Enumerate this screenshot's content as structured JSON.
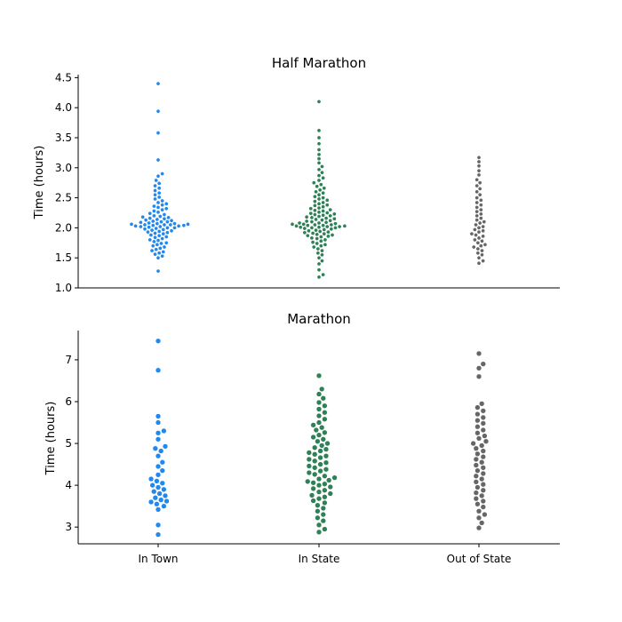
{
  "colors": {
    "In Town": "#2088ee",
    "In State": "#2e8055",
    "Out of State": "#666666"
  },
  "chart_data": [
    {
      "type": "scatter",
      "style": "swarm",
      "title": "Half Marathon",
      "ylabel": "Time (hours)",
      "categories": [
        "In Town",
        "In State",
        "Out of State"
      ],
      "yticks": [
        1.0,
        1.5,
        2.0,
        2.5,
        3.0,
        3.5,
        4.0,
        4.5
      ],
      "ytick_labels": [
        "1.0",
        "1.5",
        "2.0",
        "2.5",
        "3.0",
        "3.5",
        "4.0",
        "4.5"
      ],
      "ylim": [
        1.0,
        4.55
      ],
      "grid": false,
      "series": [
        {
          "category": "In Town",
          "values": [
            1.28,
            1.5,
            1.53,
            1.56,
            1.58,
            1.6,
            1.62,
            1.64,
            1.66,
            1.68,
            1.7,
            1.72,
            1.74,
            1.75,
            1.77,
            1.79,
            1.8,
            1.82,
            1.84,
            1.85,
            1.87,
            1.88,
            1.9,
            1.91,
            1.92,
            1.93,
            1.94,
            1.95,
            1.96,
            1.97,
            1.98,
            1.99,
            2.0,
            2.0,
            2.01,
            2.02,
            2.02,
            2.03,
            2.03,
            2.04,
            2.04,
            2.05,
            2.05,
            2.05,
            2.06,
            2.06,
            2.07,
            2.07,
            2.08,
            2.09,
            2.1,
            2.1,
            2.11,
            2.12,
            2.13,
            2.14,
            2.15,
            2.16,
            2.17,
            2.18,
            2.19,
            2.2,
            2.22,
            2.24,
            2.26,
            2.28,
            2.3,
            2.32,
            2.34,
            2.36,
            2.38,
            2.4,
            2.42,
            2.45,
            2.48,
            2.51,
            2.55,
            2.58,
            2.62,
            2.66,
            2.7,
            2.74,
            2.79,
            2.86,
            2.9,
            3.13,
            3.58,
            3.94,
            4.4
          ]
        },
        {
          "category": "In State",
          "values": [
            1.18,
            1.22,
            1.3,
            1.4,
            1.45,
            1.5,
            1.55,
            1.58,
            1.62,
            1.65,
            1.68,
            1.7,
            1.72,
            1.74,
            1.76,
            1.78,
            1.8,
            1.82,
            1.83,
            1.85,
            1.86,
            1.87,
            1.88,
            1.89,
            1.9,
            1.91,
            1.92,
            1.93,
            1.94,
            1.95,
            1.96,
            1.97,
            1.98,
            1.99,
            2.0,
            2.0,
            2.01,
            2.01,
            2.02,
            2.02,
            2.03,
            2.03,
            2.04,
            2.04,
            2.05,
            2.05,
            2.06,
            2.06,
            2.07,
            2.08,
            2.08,
            2.09,
            2.1,
            2.11,
            2.12,
            2.13,
            2.14,
            2.15,
            2.16,
            2.17,
            2.18,
            2.19,
            2.2,
            2.21,
            2.22,
            2.23,
            2.24,
            2.25,
            2.26,
            2.28,
            2.29,
            2.3,
            2.32,
            2.33,
            2.35,
            2.37,
            2.38,
            2.4,
            2.42,
            2.44,
            2.46,
            2.48,
            2.5,
            2.52,
            2.55,
            2.58,
            2.6,
            2.63,
            2.66,
            2.69,
            2.72,
            2.75,
            2.79,
            2.83,
            2.87,
            2.92,
            2.97,
            3.02,
            3.08,
            3.15,
            3.22,
            3.3,
            3.4,
            3.5,
            3.62,
            4.1
          ]
        },
        {
          "category": "Out of State",
          "values": [
            1.41,
            1.45,
            1.5,
            1.55,
            1.58,
            1.62,
            1.65,
            1.68,
            1.7,
            1.72,
            1.75,
            1.78,
            1.8,
            1.83,
            1.86,
            1.88,
            1.9,
            1.93,
            1.95,
            1.97,
            2.0,
            2.02,
            2.05,
            2.08,
            2.1,
            2.13,
            2.16,
            2.2,
            2.23,
            2.27,
            2.3,
            2.34,
            2.38,
            2.42,
            2.46,
            2.5,
            2.55,
            2.6,
            2.65,
            2.7,
            2.75,
            2.8,
            2.88,
            2.95,
            3.03,
            3.1,
            3.17
          ]
        }
      ]
    },
    {
      "type": "scatter",
      "style": "swarm",
      "title": "Marathon",
      "ylabel": "Time (hours)",
      "categories": [
        "In Town",
        "In State",
        "Out of State"
      ],
      "yticks": [
        3,
        4,
        5,
        6,
        7
      ],
      "ytick_labels": [
        "3",
        "4",
        "5",
        "6",
        "7"
      ],
      "ylim": [
        2.6,
        7.7
      ],
      "grid": false,
      "series": [
        {
          "category": "In Town",
          "values": [
            2.82,
            3.05,
            3.42,
            3.5,
            3.55,
            3.6,
            3.62,
            3.65,
            3.7,
            3.75,
            3.8,
            3.85,
            3.9,
            3.95,
            4.0,
            4.05,
            4.1,
            4.15,
            4.25,
            4.35,
            4.45,
            4.55,
            4.7,
            4.82,
            4.88,
            4.93,
            5.1,
            5.25,
            5.3,
            5.5,
            5.65,
            6.75,
            7.45
          ]
        },
        {
          "category": "In State",
          "values": [
            2.88,
            2.95,
            3.05,
            3.15,
            3.22,
            3.3,
            3.38,
            3.45,
            3.52,
            3.58,
            3.63,
            3.68,
            3.72,
            3.76,
            3.8,
            3.84,
            3.88,
            3.92,
            3.96,
            4.0,
            4.03,
            4.06,
            4.09,
            4.12,
            4.15,
            4.18,
            4.22,
            4.26,
            4.3,
            4.34,
            4.38,
            4.42,
            4.46,
            4.5,
            4.54,
            4.58,
            4.62,
            4.66,
            4.7,
            4.74,
            4.78,
            4.82,
            4.86,
            4.9,
            4.95,
            5.0,
            5.05,
            5.1,
            5.15,
            5.2,
            5.26,
            5.32,
            5.38,
            5.44,
            5.5,
            5.58,
            5.66,
            5.74,
            5.82,
            5.9,
            5.98,
            6.08,
            6.18,
            6.3,
            6.62
          ]
        },
        {
          "category": "Out of State",
          "values": [
            2.98,
            3.1,
            3.22,
            3.3,
            3.38,
            3.48,
            3.55,
            3.62,
            3.68,
            3.75,
            3.82,
            3.88,
            3.95,
            4.02,
            4.08,
            4.15,
            4.22,
            4.28,
            4.35,
            4.42,
            4.48,
            4.55,
            4.62,
            4.68,
            4.75,
            4.82,
            4.88,
            4.95,
            5.0,
            5.05,
            5.12,
            5.18,
            5.25,
            5.32,
            5.4,
            5.48,
            5.55,
            5.62,
            5.7,
            5.78,
            5.86,
            5.95,
            6.6,
            6.8,
            6.9,
            7.15
          ]
        }
      ]
    }
  ]
}
